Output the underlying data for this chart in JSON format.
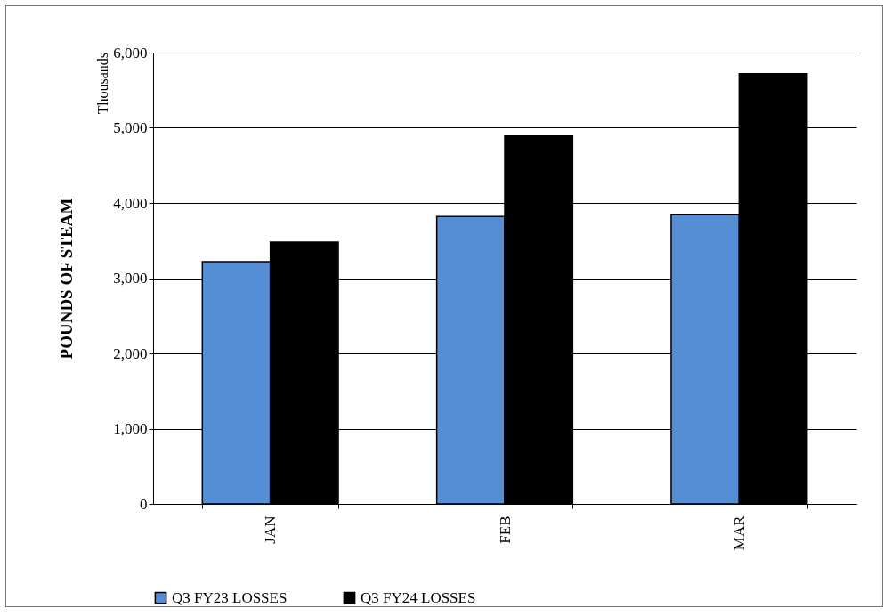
{
  "chart_data": {
    "type": "bar",
    "ylabel": "POUNDS OF STEAM",
    "annotations": [
      "Thousands"
    ],
    "categories": [
      "JAN",
      "FEB",
      "MAR"
    ],
    "series": [
      {
        "name": "Q3 FY23 LOSSES",
        "color": "#558ed5",
        "values": [
          3220,
          3820,
          3850
        ]
      },
      {
        "name": "Q3 FY24 LOSSES",
        "color": "#000000",
        "values": [
          3480,
          4890,
          5720
        ]
      }
    ],
    "ylim": [
      0,
      6000
    ],
    "yticks": [
      {
        "value": 0,
        "label": "0"
      },
      {
        "value": 1000,
        "label": "1,000"
      },
      {
        "value": 2000,
        "label": "2,000"
      },
      {
        "value": 3000,
        "label": "3,000"
      },
      {
        "value": 4000,
        "label": "4,000"
      },
      {
        "value": 5000,
        "label": "5,000"
      },
      {
        "value": 6000,
        "label": "6,000"
      }
    ],
    "grid": "y",
    "legend": "bottom"
  }
}
